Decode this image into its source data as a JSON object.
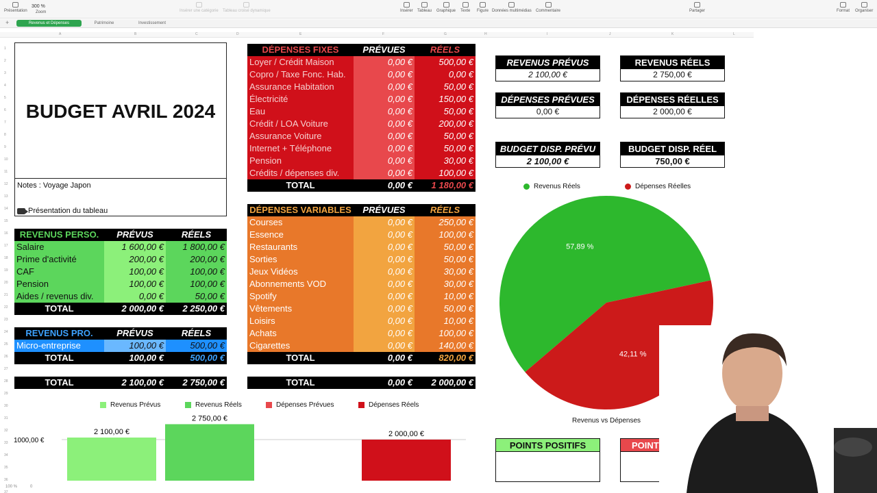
{
  "toolbar": {
    "presentation": "Présentation",
    "zoom_value": "300 %",
    "zoom": "Zoom",
    "insert_category": "Insérer une catégorie",
    "pivot_table": "Tableau croisé dynamique",
    "insert": "Insérer",
    "table": "Tableau",
    "chart": "Graphique",
    "text": "Texte",
    "shape": "Figure",
    "media": "Données multimédias",
    "comment": "Commentaire",
    "share": "Partager",
    "format": "Format",
    "organize": "Organiser"
  },
  "sheets": [
    "Revenus et Dépenses",
    "Patrimoine",
    "Investissement"
  ],
  "add_sheet": "+",
  "columns": [
    "A",
    "B",
    "C",
    "D",
    "E",
    "F",
    "G",
    "H",
    "I",
    "J",
    "K",
    "L"
  ],
  "rows": [
    "1",
    "2",
    "3",
    "4",
    "5",
    "6",
    "7",
    "8",
    "9",
    "10",
    "11",
    "12",
    "13",
    "14",
    "15",
    "16",
    "17",
    "18",
    "19",
    "20",
    "21",
    "22",
    "23",
    "24",
    "25",
    "26",
    "27",
    "28",
    "29",
    "30",
    "31",
    "32",
    "33",
    "34",
    "35",
    "36",
    "37",
    "38"
  ],
  "title": {
    "text": "BUDGET AVRIL 2024",
    "notes": "Notes : Voyage Japon",
    "presentation": "Présentation du tableau"
  },
  "revenus_perso": {
    "headers": [
      "REVENUS PERSO.",
      "PRÉVUS",
      "RÉELS"
    ],
    "rows": [
      [
        "Salaire",
        "1 600,00 €",
        "1 800,00 €"
      ],
      [
        "Prime d'activité",
        "200,00 €",
        "200,00 €"
      ],
      [
        "CAF",
        "100,00 €",
        "100,00 €"
      ],
      [
        "Pension",
        "100,00 €",
        "100,00 €"
      ],
      [
        "Aides / revenus div.",
        "0,00 €",
        "50,00 €"
      ]
    ],
    "total": [
      "TOTAL",
      "2 000,00 €",
      "2 250,00 €"
    ]
  },
  "revenus_pro": {
    "headers": [
      "REVENUS PRO.",
      "PRÉVUS",
      "RÉELS"
    ],
    "rows": [
      [
        "Micro-entreprise",
        "100,00 €",
        "500,00 €"
      ]
    ],
    "total": [
      "TOTAL",
      "100,00 €",
      "500,00 €"
    ]
  },
  "revenus_total": [
    "TOTAL",
    "2 100,00 €",
    "2 750,00 €"
  ],
  "depenses_fixes": {
    "headers": [
      "DÉPENSES FIXES",
      "PRÉVUES",
      "RÉELS"
    ],
    "rows": [
      [
        "Loyer / Crédit Maison",
        "0,00 €",
        "500,00 €"
      ],
      [
        "Copro / Taxe Fonc. Hab.",
        "0,00 €",
        "0,00 €"
      ],
      [
        "Assurance Habitation",
        "0,00 €",
        "50,00 €"
      ],
      [
        "Électricité",
        "0,00 €",
        "150,00 €"
      ],
      [
        "Eau",
        "0,00 €",
        "50,00 €"
      ],
      [
        "Crédit / LOA Voiture",
        "0,00 €",
        "200,00 €"
      ],
      [
        "Assurance Voiture",
        "0,00 €",
        "50,00 €"
      ],
      [
        "Internet + Téléphone",
        "0,00 €",
        "50,00 €"
      ],
      [
        "Pension",
        "0,00 €",
        "30,00 €"
      ],
      [
        "Crédits / dépenses div.",
        "0,00 €",
        "100,00 €"
      ]
    ],
    "total": [
      "TOTAL",
      "0,00 €",
      "1 180,00 €"
    ]
  },
  "depenses_variables": {
    "headers": [
      "DÉPENSES VARIABLES",
      "PRÉVUES",
      "RÉELS"
    ],
    "rows": [
      [
        "Courses",
        "0,00 €",
        "250,00 €"
      ],
      [
        "Essence",
        "0,00 €",
        "100,00 €"
      ],
      [
        "Restaurants",
        "0,00 €",
        "50,00 €"
      ],
      [
        "Sorties",
        "0,00 €",
        "50,00 €"
      ],
      [
        "Jeux Vidéos",
        "0,00 €",
        "30,00 €"
      ],
      [
        "Abonnements VOD",
        "0,00 €",
        "30,00 €"
      ],
      [
        "Spotify",
        "0,00 €",
        "10,00 €"
      ],
      [
        "Vêtements",
        "0,00 €",
        "50,00 €"
      ],
      [
        "Loisirs",
        "0,00 €",
        "10,00 €"
      ],
      [
        "Achats",
        "0,00 €",
        "100,00 €"
      ],
      [
        "Cigarettes",
        "0,00 €",
        "140,00 €"
      ]
    ],
    "total": [
      "TOTAL",
      "0,00 €",
      "820,00 €"
    ]
  },
  "depenses_total": [
    "TOTAL",
    "0,00 €",
    "2 000,00 €"
  ],
  "summary": {
    "revenus_prevus": {
      "label": "REVENUS PRÉVUS",
      "value": "2 100,00 €"
    },
    "revenus_reels": {
      "label": "REVENUS RÉELS",
      "value": "2 750,00 €"
    },
    "depenses_prevues": {
      "label": "DÉPENSES PRÉVUES",
      "value": "0,00 €"
    },
    "depenses_reelles": {
      "label": "DÉPENSES RÉELLES",
      "value": "2 000,00 €"
    },
    "budget_prevu": {
      "label": "BUDGET DISP. PRÉVU",
      "value": "2 100,00 €"
    },
    "budget_reel": {
      "label": "BUDGET DISP. RÉEL",
      "value": "750,00 €"
    }
  },
  "points": {
    "positifs": "POINTS POSITIFS",
    "negatifs": "POINTS NÉG"
  },
  "colors": {
    "green_header": "#5cd65c",
    "green_cell": "#5ee05e",
    "green_light": "#8cf07a",
    "blue_header": "#1e90ff",
    "blue_cell": "#3da2ff",
    "blue_light": "#6ab8ff",
    "red_fixed": "#d0101a",
    "red_light": "#e8484c",
    "orange": "#e8782a",
    "orange_light": "#f2a440",
    "pie_green": "#2db82d",
    "pie_red": "#cc1a1a"
  },
  "chart_data": [
    {
      "type": "pie",
      "title": "Revenus vs Dépenses",
      "legend": [
        "Revenus Réels",
        "Dépenses Réelles"
      ],
      "legend_position": "top",
      "slices": [
        {
          "name": "Revenus Réels",
          "value": 57.89,
          "label": "57,89 %",
          "color": "#2db82d"
        },
        {
          "name": "Dépenses Réelles",
          "value": 42.11,
          "label": "42,11 %",
          "color": "#cc1a1a"
        }
      ]
    },
    {
      "type": "bar",
      "legend": [
        "Revenus Prévus",
        "Revenus Réels",
        "Dépenses Prévues",
        "Dépenses Réels"
      ],
      "legend_position": "top",
      "categories": [
        "Revenus Prévus",
        "Revenus Réels",
        "Dépenses Prévues",
        "Dépenses Réels"
      ],
      "values": [
        2100,
        2750,
        0,
        2000
      ],
      "labels": [
        "2 100,00 €",
        "2 750,00 €",
        "",
        "2 000,00 €"
      ],
      "colors": [
        "#8cf07a",
        "#5cd65c",
        "#e8484c",
        "#d0101a"
      ],
      "ytick": "1000,00 €",
      "ytick_value": 1000
    }
  ],
  "status": {
    "zoom": "100 %",
    "sum": "0"
  }
}
